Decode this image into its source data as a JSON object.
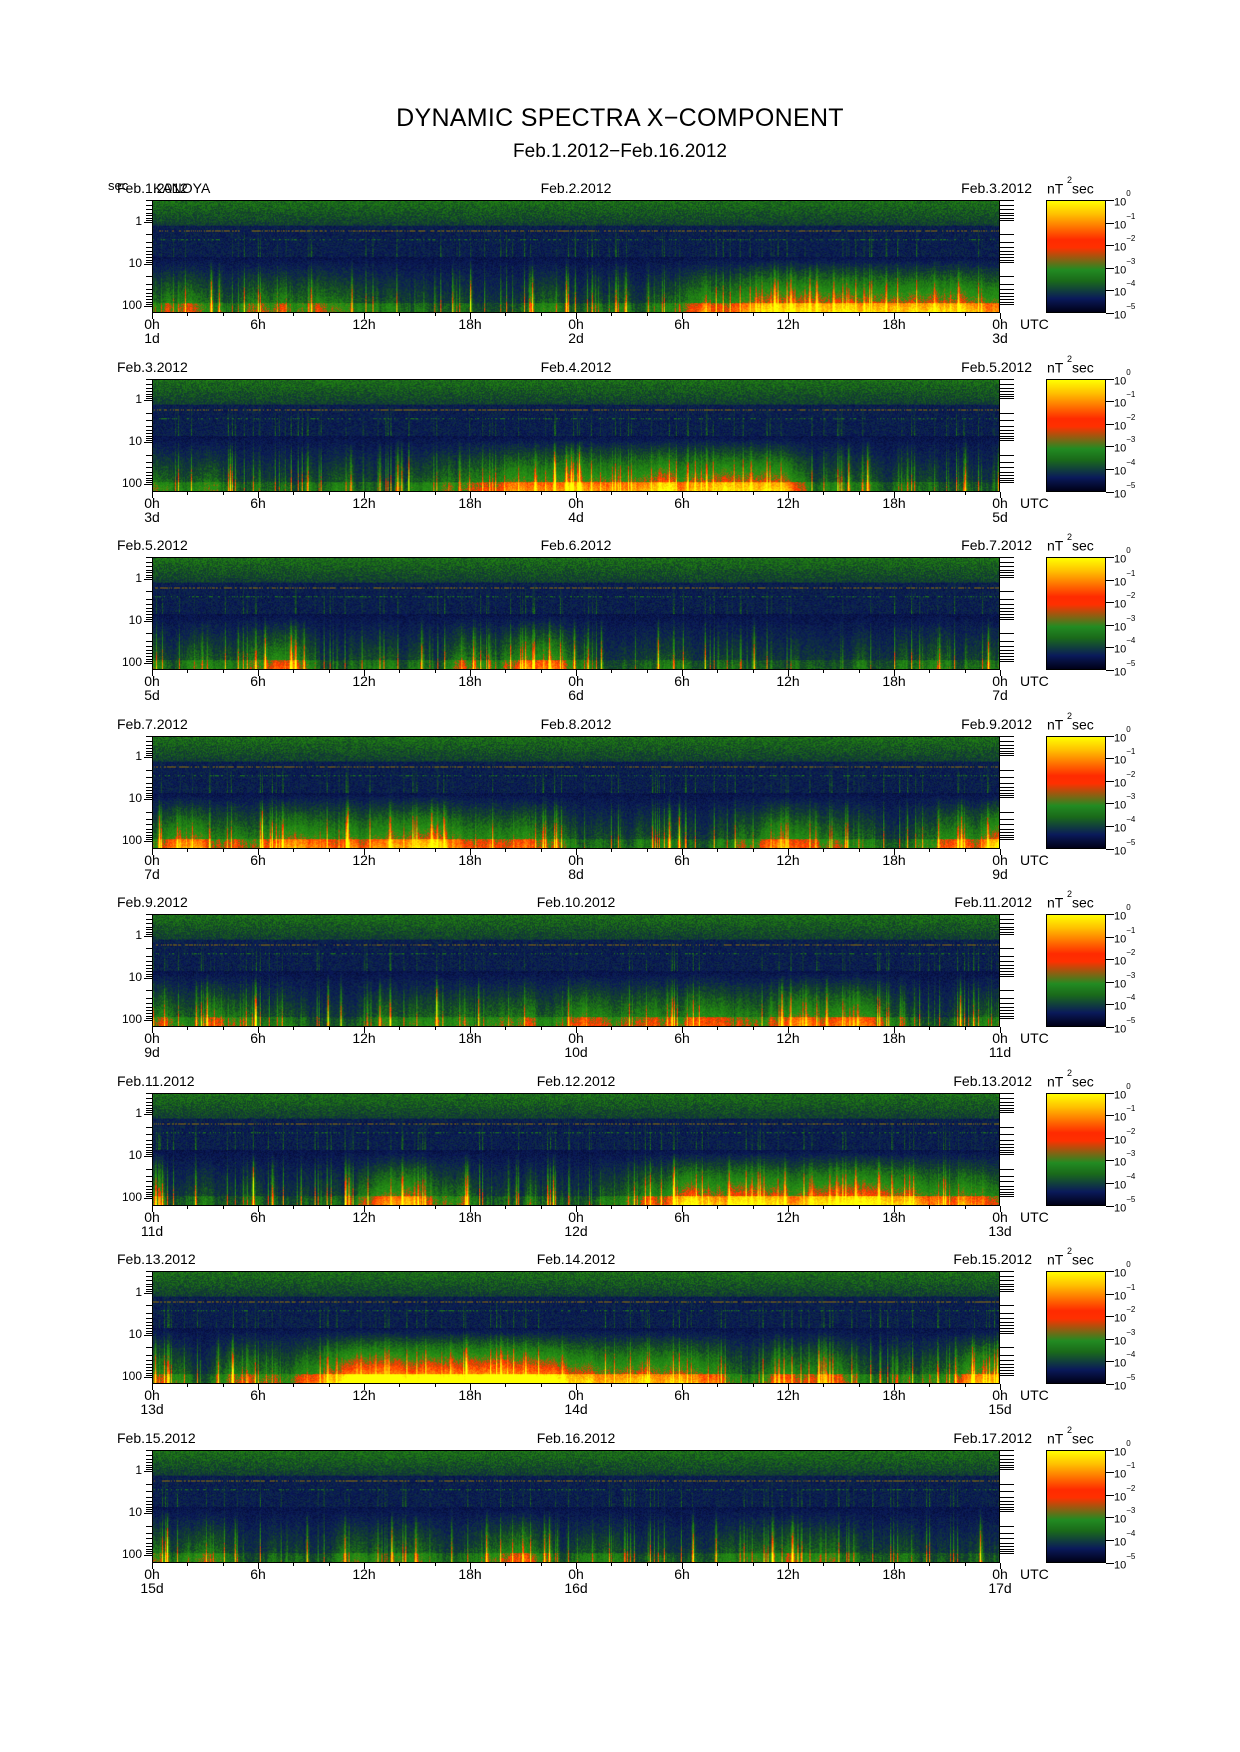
{
  "header": {
    "title": "DYNAMIC SPECTRA X−COMPONENT",
    "subtitle": "Feb.1.2012−Feb.16.2012",
    "y_unit": "sec",
    "station": "KANOYA"
  },
  "colorbar": {
    "unit_base": "nT",
    "unit_exp": "2",
    "unit_suffix": "sec",
    "labels": [
      {
        "base": "10",
        "exp": "0"
      },
      {
        "base": "10",
        "exp": "−1"
      },
      {
        "base": "10",
        "exp": "−2"
      },
      {
        "base": "10",
        "exp": "−3"
      },
      {
        "base": "10",
        "exp": "−4"
      },
      {
        "base": "10",
        "exp": "−5"
      }
    ]
  },
  "axes": {
    "y_ticks": [
      "1",
      "10",
      "100"
    ],
    "x_ticks": [
      "0h",
      "6h",
      "12h",
      "18h",
      "0h",
      "6h",
      "12h",
      "18h",
      "0h"
    ],
    "utc_label": "UTC"
  },
  "chart_data": {
    "type": "heatmap",
    "title": "DYNAMIC SPECTRA X−COMPONENT",
    "ylabel": "sec",
    "y_scale": "log",
    "ylim": [
      0.3,
      150
    ],
    "zlim": [
      1e-05,
      1
    ],
    "z_unit": "nT²sec",
    "panels": [
      {
        "date_left": "Feb.1.2012",
        "date_mid": "Feb.2.2012",
        "date_right": "Feb.3.2012",
        "day_start": "1d",
        "day_mid": "2d",
        "day_end": "3d",
        "seed": 11,
        "activity": 0.7
      },
      {
        "date_left": "Feb.3.2012",
        "date_mid": "Feb.4.2012",
        "date_right": "Feb.5.2012",
        "day_start": "3d",
        "day_mid": "4d",
        "day_end": "5d",
        "seed": 23,
        "activity": 0.75
      },
      {
        "date_left": "Feb.5.2012",
        "date_mid": "Feb.6.2012",
        "date_right": "Feb.7.2012",
        "day_start": "5d",
        "day_mid": "6d",
        "day_end": "7d",
        "seed": 37,
        "activity": 0.7
      },
      {
        "date_left": "Feb.7.2012",
        "date_mid": "Feb.8.2012",
        "date_right": "Feb.9.2012",
        "day_start": "7d",
        "day_mid": "8d",
        "day_end": "9d",
        "seed": 41,
        "activity": 0.85
      },
      {
        "date_left": "Feb.9.2012",
        "date_mid": "Feb.10.2012",
        "date_right": "Feb.11.2012",
        "day_start": "9d",
        "day_mid": "10d",
        "day_end": "11d",
        "seed": 53,
        "activity": 0.8
      },
      {
        "date_left": "Feb.11.2012",
        "date_mid": "Feb.12.2012",
        "date_right": "Feb.13.2012",
        "day_start": "11d",
        "day_mid": "12d",
        "day_end": "13d",
        "seed": 67,
        "activity": 0.75
      },
      {
        "date_left": "Feb.13.2012",
        "date_mid": "Feb.14.2012",
        "date_right": "Feb.15.2012",
        "day_start": "13d",
        "day_mid": "14d",
        "day_end": "15d",
        "seed": 79,
        "activity": 0.9
      },
      {
        "date_left": "Feb.15.2012",
        "date_mid": "Feb.16.2012",
        "date_right": "Feb.17.2012",
        "day_start": "15d",
        "day_mid": "16d",
        "day_end": "17d",
        "seed": 83,
        "activity": 0.8
      }
    ]
  }
}
